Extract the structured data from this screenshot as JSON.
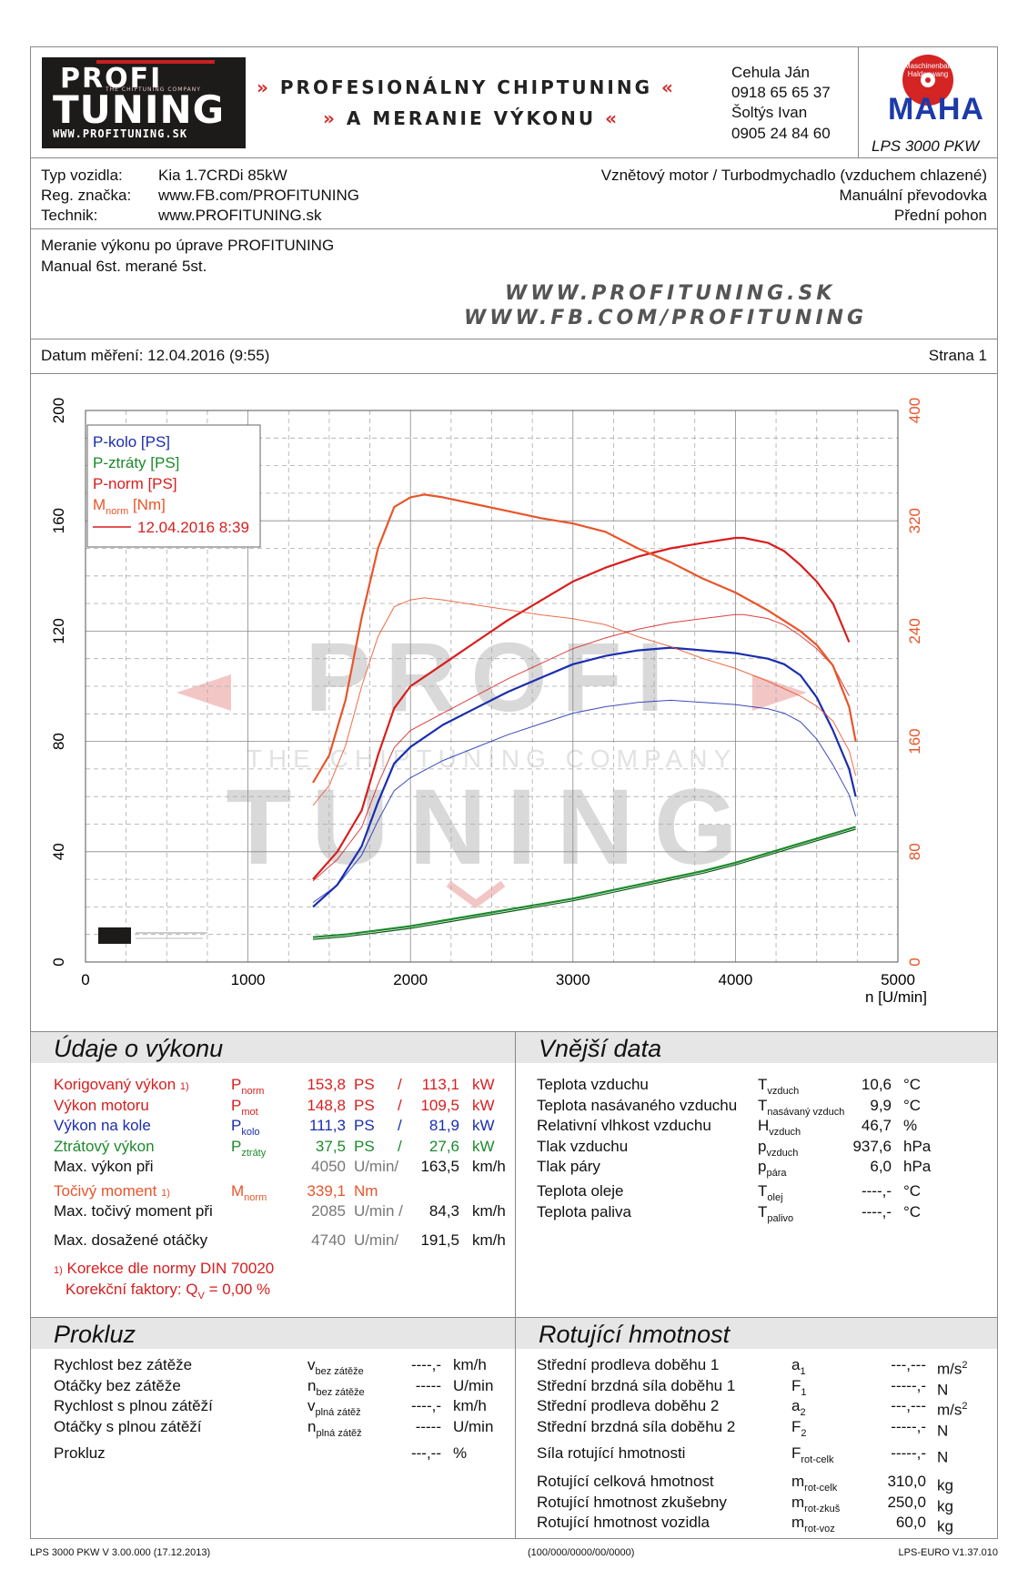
{
  "header": {
    "logo_line1": "PROFI",
    "logo_line2": "TUNING",
    "logo_tagline": "THE CHIPTUNING COMPANY",
    "logo_url": "WWW.PROFITUNING.SK",
    "slogan_line1": "PROFESIONÁLNY CHIPTUNING",
    "slogan_line2": "A MERANIE VÝKONU",
    "contact_name1": "Cehula Ján",
    "contact_phone1": "0918 65 65 37",
    "contact_name2": "Šoltýs Ivan",
    "contact_phone2": "0905 24 84 60",
    "maha_arc": "Maschinenbau Haldenwang",
    "maha_logo": "MAHA",
    "maha_model": "LPS 3000 PKW"
  },
  "vehicle": {
    "type_label": "Typ vozidla:",
    "type_value": "Kia 1.7CRDi 85kW",
    "reg_label": "Reg. značka:",
    "reg_value": "www.FB.com/PROFITUNING",
    "tech_label": "Technik:",
    "tech_value": "www.PROFITUNING.sk",
    "engine": "Vznětový motor / Turbodmychadlo (vzduchem chlazené)",
    "gearbox": "Manuální převodovka",
    "drive": "Přední pohon"
  },
  "notes": {
    "line1": "Meranie výkonu po úprave PROFITUNING",
    "line2": "Manual 6st. merané 5st.",
    "wm1": "WWW.PROFITUNING.SK",
    "wm2": "WWW.FB.COM/PROFITUNING"
  },
  "date_row": {
    "date": "Datum měření: 12.04.2016 (9:55)",
    "page": "Strana 1"
  },
  "watermark": {
    "line1": "PROFI",
    "line2": "THE CHIPTUNING COMPANY",
    "line3": "TUNING"
  },
  "colors": {
    "p_kolo": "#1a2db0",
    "p_ztraty": "#1c8a2a",
    "p_norm": "#d81e1e",
    "m_norm": "#e8552a"
  },
  "chart_data": {
    "type": "line",
    "xlabel": "n [U/min]",
    "xlim": [
      0,
      5000
    ],
    "xticks": [
      0,
      1000,
      2000,
      3000,
      4000,
      5000
    ],
    "y_left_lim": [
      0,
      200
    ],
    "y_left_ticks": [
      0,
      40,
      80,
      120,
      160,
      200
    ],
    "y_right_lim": [
      0,
      400
    ],
    "y_right_ticks": [
      0,
      80,
      160,
      240,
      320,
      400
    ],
    "grid": true,
    "legend_position": "top-left",
    "legend": [
      "P-kolo [PS]",
      "P-ztráty [PS]",
      "P-norm [PS]",
      "M"
    ],
    "legend_m_sub": "norm",
    "legend_m_unit": " [Nm]",
    "legend_run": "12.04.2016 8:39",
    "series": [
      {
        "name": "P-kolo [PS]",
        "axis": "left",
        "color": "#1a2db0",
        "x": [
          1400,
          1550,
          1700,
          1800,
          1900,
          2000,
          2200,
          2400,
          2600,
          2800,
          3000,
          3200,
          3400,
          3600,
          3800,
          4000,
          4100,
          4200,
          4300,
          4400,
          4500,
          4600,
          4700,
          4740
        ],
        "y": [
          20,
          28,
          42,
          58,
          72,
          78,
          86,
          92,
          98,
          103,
          108,
          111,
          113,
          114,
          113,
          112,
          111,
          110,
          108,
          104,
          96,
          84,
          70,
          60
        ]
      },
      {
        "name": "P-ztráty [PS]",
        "axis": "left",
        "color": "#1c8a2a",
        "x": [
          1400,
          1600,
          1800,
          2000,
          2200,
          2400,
          2600,
          2800,
          3000,
          3200,
          3400,
          3600,
          3800,
          4000,
          4200,
          4400,
          4600,
          4740
        ],
        "y": [
          9,
          10,
          11.5,
          13,
          15,
          17,
          19,
          21,
          23,
          25.5,
          28,
          30.5,
          33,
          36,
          39.5,
          43,
          46.5,
          49
        ]
      },
      {
        "name": "P-norm [PS]",
        "axis": "left",
        "color": "#d81e1e",
        "x": [
          1400,
          1550,
          1700,
          1800,
          1900,
          2000,
          2200,
          2400,
          2600,
          2800,
          3000,
          3200,
          3400,
          3600,
          3800,
          4000,
          4050,
          4200,
          4300,
          4400,
          4500,
          4600,
          4700
        ],
        "y": [
          30,
          40,
          55,
          75,
          92,
          100,
          108,
          116,
          124,
          131,
          138,
          143,
          147,
          150,
          152,
          153.8,
          153.8,
          152,
          149,
          144,
          138,
          130,
          116
        ]
      },
      {
        "name": "M",
        "axis": "right",
        "color": "#e8552a",
        "x": [
          1400,
          1500,
          1600,
          1700,
          1800,
          1900,
          2000,
          2085,
          2200,
          2400,
          2600,
          2800,
          3000,
          3200,
          3400,
          3600,
          3800,
          4000,
          4200,
          4400,
          4500,
          4600,
          4700,
          4740
        ],
        "y": [
          130,
          150,
          190,
          250,
          300,
          330,
          337,
          339,
          337,
          332,
          327,
          322,
          318,
          312,
          300,
          290,
          278,
          268,
          255,
          240,
          230,
          215,
          185,
          160
        ]
      }
    ]
  },
  "performance": {
    "title": "Údaje o výkonu",
    "rows": [
      {
        "label": "Korigovaný výkon",
        "sup": "1)",
        "sym": "P",
        "sub": "norm",
        "v1": "153,8",
        "u1": "PS",
        "sep": "/",
        "v2": "113,1",
        "u2": "kW",
        "color": "#d81e1e"
      },
      {
        "label": "Výkon motoru",
        "sup": "",
        "sym": "P",
        "sub": "mot",
        "v1": "148,8",
        "u1": "PS",
        "sep": "/",
        "v2": "109,5",
        "u2": "kW",
        "color": "#d81e1e"
      },
      {
        "label": "Výkon na kole",
        "sup": "",
        "sym": "P",
        "sub": "kolo",
        "v1": "111,3",
        "u1": "PS",
        "sep": "/",
        "v2": "81,9",
        "u2": "kW",
        "color": "#1a2db0"
      },
      {
        "label": "Ztrátový výkon",
        "sup": "",
        "sym": "P",
        "sub": "ztráty",
        "v1": "37,5",
        "u1": "PS",
        "sep": "/",
        "v2": "27,6",
        "u2": "kW",
        "color": "#1c8a2a"
      },
      {
        "label": "Max. výkon při",
        "sup": "",
        "sym": "",
        "sub": "",
        "v1": "4050",
        "u1": "U/min/",
        "sep": "",
        "v2": "163,5",
        "u2": "km/h",
        "color": "#111"
      }
    ],
    "torque_rows": [
      {
        "label": "Točivý moment",
        "sup": "1)",
        "sym": "M",
        "sub": "norm",
        "v1": "339,1",
        "u1": "Nm",
        "color": "#e8552a"
      },
      {
        "label": "Max. točivý moment při",
        "v1": "2085",
        "u1": "U/min /",
        "v2": "84,3",
        "u2": "km/h"
      },
      {
        "label": "Max. dosažené otáčky",
        "v1": "4740",
        "u1": "U/min/",
        "v2": "191,5",
        "u2": "km/h"
      }
    ],
    "footnote1": "Korekce dle normy DIN 70020",
    "footnote_mark": "1)",
    "footnote2": "Korekční faktory: Q",
    "footnote2_sub": "V",
    "footnote2_val": " =    0,00 %"
  },
  "external": {
    "title": "Vnější data",
    "rows": [
      {
        "label": "Teplota vzduchu",
        "sym": "T",
        "sub": "vzduch",
        "val": "10,6",
        "unit": "°C"
      },
      {
        "label": "Teplota nasávaného vzduchu",
        "sym": "T",
        "sub": "nasávaný vzduch",
        "val": "9,9",
        "unit": "°C"
      },
      {
        "label": "Relativní vlhkost vzduchu",
        "sym": "H",
        "sub": "vzduch",
        "val": "46,7",
        "unit": "%"
      },
      {
        "label": "Tlak vzduchu",
        "sym": "p",
        "sub": "vzduch",
        "val": "937,6",
        "unit": "hPa"
      },
      {
        "label": "Tlak páry",
        "sym": "p",
        "sub": "pára",
        "val": "6,0",
        "unit": "hPa"
      },
      {
        "label": "Teplota oleje",
        "sym": "T",
        "sub": "olej",
        "val": "----,-",
        "unit": "°C"
      },
      {
        "label": "Teplota paliva",
        "sym": "T",
        "sub": "palivo",
        "val": "----,-",
        "unit": "°C"
      }
    ]
  },
  "slip": {
    "title": "Prokluz",
    "rows": [
      {
        "label": "Rychlost bez zátěže",
        "sym": "v",
        "sub": "bez zátěže",
        "val": "----,-",
        "unit": "km/h"
      },
      {
        "label": "Otáčky bez zátěže",
        "sym": "n",
        "sub": "bez zátěže",
        "val": "-----",
        "unit": "U/min"
      },
      {
        "label": "Rychlost s plnou zátěží",
        "sym": "v",
        "sub": "plná zátěž",
        "val": "----,-",
        "unit": "km/h"
      },
      {
        "label": "Otáčky s plnou zátěží",
        "sym": "n",
        "sub": "plná zátěž",
        "val": "-----",
        "unit": "U/min"
      },
      {
        "label": "Prokluz",
        "sym": "",
        "sub": "",
        "val": "---,--",
        "unit": "%"
      }
    ]
  },
  "rotating": {
    "title": "Rotující hmotnost",
    "rows": [
      {
        "label": "Střední prodleva doběhu 1",
        "sym": "a",
        "sub": "1",
        "val": "---,---",
        "unit": "m/s",
        "sup": "2"
      },
      {
        "label": "Střední brzdná síla doběhu 1",
        "sym": "F",
        "sub": "1",
        "val": "-----,-",
        "unit": "N",
        "sup": ""
      },
      {
        "label": "Střední prodleva doběhu 2",
        "sym": "a",
        "sub": "2",
        "val": "---,---",
        "unit": "m/s",
        "sup": "2"
      },
      {
        "label": "Střední brzdná síla doběhu 2",
        "sym": "F",
        "sub": "2",
        "val": "-----,-",
        "unit": "N",
        "sup": ""
      },
      {
        "label": "Síla rotující hmotnosti",
        "sym": "F",
        "sub": "rot-celk",
        "val": "-----,-",
        "unit": "N",
        "sup": ""
      },
      {
        "label": "Rotující celková hmotnost",
        "sym": "m",
        "sub": "rot-celk",
        "val": "310,0",
        "unit": "kg",
        "sup": ""
      },
      {
        "label": "Rotující hmotnost zkušebny",
        "sym": "m",
        "sub": "rot-zkuš",
        "val": "250,0",
        "unit": "kg",
        "sup": ""
      },
      {
        "label": "Rotující hmotnost vozidla",
        "sym": "m",
        "sub": "rot-voz",
        "val": "60,0",
        "unit": "kg",
        "sup": ""
      }
    ]
  },
  "footer": {
    "left": "LPS 3000 PKW V 3.00.000 (17.12.2013)",
    "center": "(100/000/0000/00/0000)",
    "right": "LPS-EURO V1.37.010"
  }
}
